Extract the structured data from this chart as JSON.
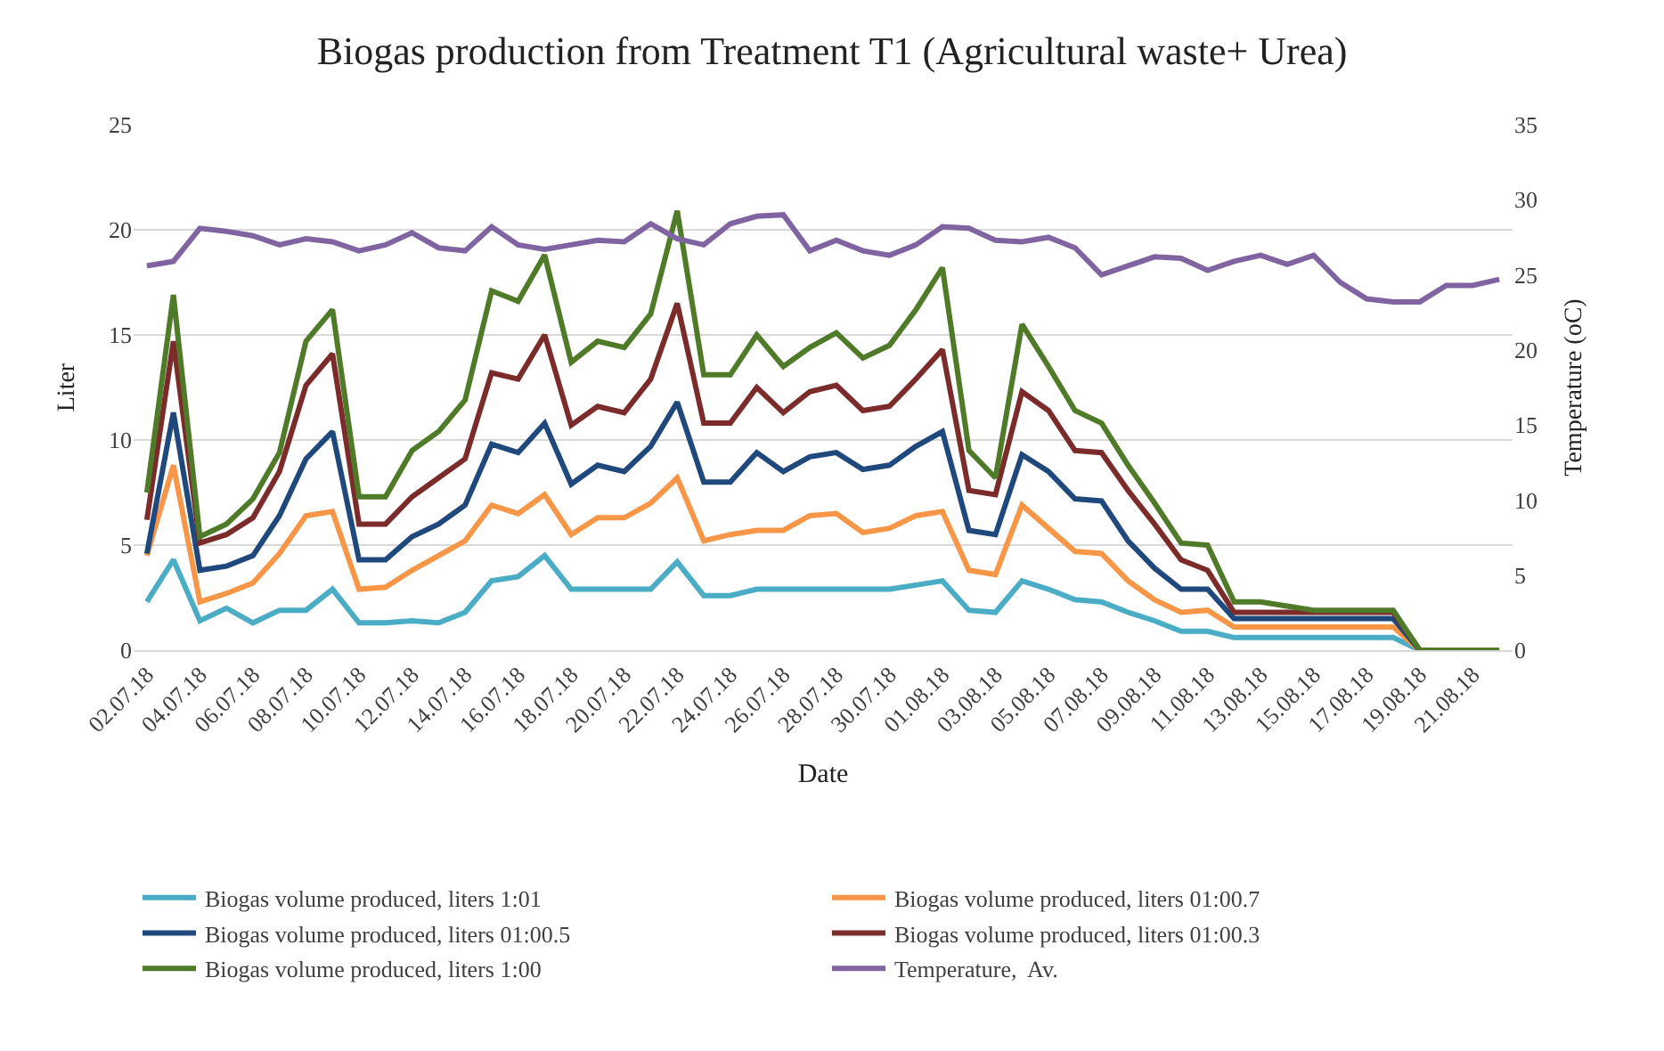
{
  "chart_data": {
    "type": "line",
    "title": "Biogas production from Treatment T1 (Agricultural waste+ Urea)",
    "xlabel": "Date",
    "ylabel": "Liter",
    "y2label": "Temperature (oC)",
    "categories": [
      "02.07.18",
      null,
      "04.07.18",
      null,
      "06.07.18",
      null,
      "08.07.18",
      null,
      "10.07.18",
      null,
      "12.07.18",
      null,
      "14.07.18",
      null,
      "16.07.18",
      null,
      "18.07.18",
      null,
      "20.07.18",
      null,
      "22.07.18",
      null,
      "24.07.18",
      null,
      "26.07.18",
      null,
      "28.07.18",
      null,
      "30.07.18",
      null,
      "01.08.18",
      null,
      "03.08.18",
      null,
      "05.08.18",
      null,
      "07.08.18",
      null,
      "09.08.18",
      null,
      "11.08.18",
      null,
      "13.08.18",
      null,
      "15.08.18",
      null,
      "17.08.18",
      null,
      "19.08.18",
      null,
      "21.08.18",
      null
    ],
    "series": [
      {
        "name": "Biogas volume produced, liters 1:01",
        "color": "#4bacc6",
        "values": [
          2.3,
          4.3,
          1.4,
          2.0,
          1.3,
          1.9,
          1.9,
          2.9,
          1.3,
          1.3,
          1.4,
          1.3,
          1.8,
          3.3,
          3.5,
          4.5,
          2.9,
          2.9,
          2.9,
          2.9,
          4.2,
          2.6,
          2.6,
          2.9,
          2.9,
          2.9,
          2.9,
          2.9,
          2.9,
          3.1,
          3.3,
          1.9,
          1.8,
          3.3,
          2.9,
          2.4,
          2.3,
          1.8,
          1.4,
          0.9,
          0.9,
          0.6,
          0.6,
          0.6,
          0.6,
          0.6,
          0.6,
          0.6,
          0,
          0,
          null,
          null
        ]
      },
      {
        "name": "Biogas volume produced, liters 01:00.7",
        "color": "#f79646",
        "values": [
          4.5,
          8.8,
          2.3,
          2.7,
          3.2,
          4.6,
          6.4,
          6.6,
          2.9,
          3.0,
          3.8,
          4.5,
          5.2,
          6.9,
          6.5,
          7.4,
          5.5,
          6.3,
          6.3,
          7.0,
          8.2,
          5.2,
          5.5,
          5.7,
          5.7,
          6.4,
          6.5,
          5.6,
          5.8,
          6.4,
          6.6,
          3.8,
          3.6,
          6.9,
          5.8,
          4.7,
          4.6,
          3.3,
          2.4,
          1.8,
          1.9,
          1.1,
          1.1,
          1.1,
          1.1,
          1.1,
          1.1,
          1.1,
          0,
          0,
          null,
          null
        ]
      },
      {
        "name": "Biogas volume produced, liters 01:00.5",
        "color": "#1f497d",
        "values": [
          4.6,
          11.3,
          3.8,
          4.0,
          4.5,
          6.4,
          9.1,
          10.4,
          4.3,
          4.3,
          5.4,
          6.0,
          6.9,
          9.8,
          9.4,
          10.8,
          7.9,
          8.8,
          8.5,
          9.7,
          11.8,
          8.0,
          8.0,
          9.4,
          8.5,
          9.2,
          9.4,
          8.6,
          8.8,
          9.7,
          10.4,
          5.7,
          5.5,
          9.3,
          8.5,
          7.2,
          7.1,
          5.2,
          3.9,
          2.9,
          2.9,
          1.5,
          1.5,
          1.5,
          1.5,
          1.5,
          1.5,
          1.5,
          0,
          0,
          null,
          null
        ]
      },
      {
        "name": "Biogas volume produced, liters 01:00.3",
        "color": "#7b2c2a",
        "values": [
          6.2,
          14.7,
          5.1,
          5.5,
          6.3,
          8.5,
          12.6,
          14.1,
          6.0,
          6.0,
          7.3,
          8.2,
          9.1,
          13.2,
          12.9,
          15.0,
          10.7,
          11.6,
          11.3,
          12.9,
          16.5,
          10.8,
          10.8,
          12.5,
          11.3,
          12.3,
          12.6,
          11.4,
          11.6,
          12.9,
          14.3,
          7.6,
          7.4,
          12.3,
          11.4,
          9.5,
          9.4,
          7.6,
          6.0,
          4.3,
          3.8,
          1.8,
          1.8,
          1.8,
          1.8,
          1.8,
          1.8,
          1.8,
          0,
          0,
          null,
          null
        ]
      },
      {
        "name": "Biogas volume produced, liters 1:00",
        "color": "#4f7a28",
        "values": [
          7.5,
          16.9,
          5.4,
          6.0,
          7.2,
          9.4,
          14.7,
          16.2,
          7.3,
          7.3,
          9.5,
          10.4,
          11.9,
          17.1,
          16.6,
          18.8,
          13.7,
          14.7,
          14.4,
          16.0,
          20.9,
          13.1,
          13.1,
          15.0,
          13.5,
          14.4,
          15.1,
          13.9,
          14.5,
          16.2,
          18.2,
          9.5,
          8.2,
          15.5,
          13.5,
          11.4,
          10.8,
          8.8,
          7.0,
          5.1,
          5.0,
          2.3,
          2.3,
          2.1,
          1.9,
          1.9,
          1.9,
          1.9,
          0,
          0,
          0,
          0
        ]
      },
      {
        "name": "Temperature,  Av.",
        "color": "#8064a2",
        "axis": "y2",
        "values": [
          25.6,
          25.9,
          28.1,
          27.9,
          27.6,
          27.0,
          27.4,
          27.2,
          26.6,
          27.0,
          27.8,
          26.8,
          26.6,
          28.2,
          27.0,
          26.7,
          27.0,
          27.3,
          27.2,
          28.4,
          27.4,
          27.0,
          28.4,
          28.9,
          29.0,
          26.6,
          27.3,
          26.6,
          26.3,
          27.0,
          28.2,
          28.1,
          27.3,
          27.2,
          27.5,
          26.8,
          25.0,
          25.6,
          26.2,
          26.1,
          25.3,
          25.9,
          26.3,
          25.7,
          26.3,
          24.5,
          23.4,
          23.2,
          23.2,
          24.3,
          24.3,
          24.7
        ]
      }
    ],
    "ylim": [
      0,
      25
    ],
    "yticks": [
      0,
      5,
      10,
      15,
      20,
      25
    ],
    "y2lim": [
      0,
      35
    ],
    "y2ticks": [
      0,
      5,
      10,
      15,
      20,
      25,
      30,
      35
    ],
    "grid": "y",
    "legend": "bottom",
    "marker": "none",
    "line_style": "solid"
  }
}
